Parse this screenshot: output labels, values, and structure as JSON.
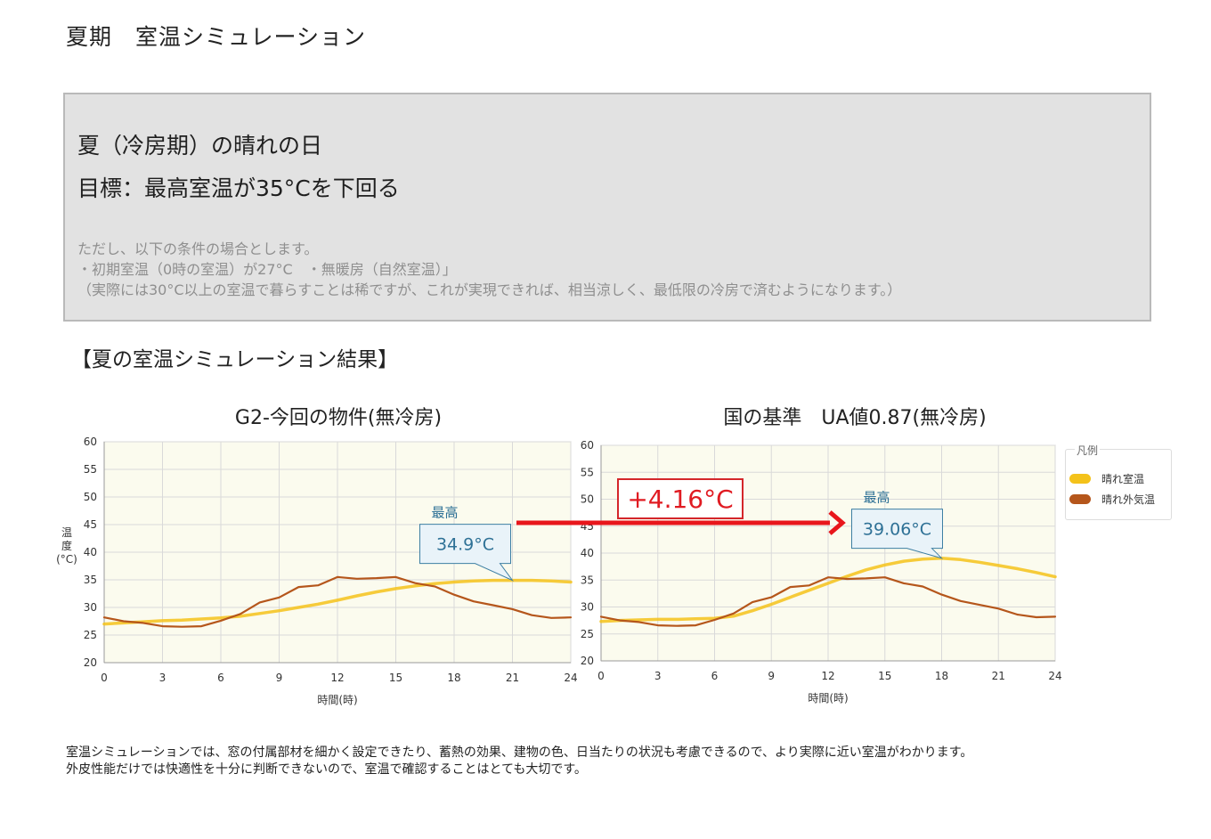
{
  "page": {
    "title": "夏期　室温シミュレーション",
    "section_heading": "【夏の室温シミュレーション結果】",
    "footer_lines": [
      "室温シミュレーションでは、窓の付属部材を細かく設定できたり、蓄熱の効果、建物の色、日当たりの状況も考慮できるので、より実際に近い室温がわかります。",
      "外皮性能だけでは快適性を十分に判断できないので、室温で確認することはとても大切です。"
    ]
  },
  "info_box": {
    "heading1": "夏（冷房期）の晴れの日",
    "heading2": "目標：最高室温が35°Cを下回る",
    "notes": [
      "ただし、以下の条件の場合とします。",
      "・初期室温（0時の室温）が27°C　・無暖房（自然室温）」",
      "（実際には30°C以上の室温で暮らすことは稀ですが、これが実現できれば、相当涼しく、最低限の冷房で済むようになります。）"
    ]
  },
  "comparison": {
    "difference_label": "+4.16°C",
    "arrow_color": "#e8161b"
  },
  "legend": {
    "title": "凡例",
    "items": [
      {
        "label": "晴れ室温",
        "color": "#f4c21a"
      },
      {
        "label": "晴れ外気温",
        "color": "#b5561b"
      }
    ]
  },
  "chart_data": [
    {
      "type": "line",
      "title": "G2-今回の物件(無冷房)",
      "xlabel": "時間(時)",
      "ylabel": "温度(°C)",
      "xlim": [
        0,
        24
      ],
      "ylim": [
        20,
        60
      ],
      "xticks": [
        0,
        3,
        6,
        9,
        12,
        15,
        18,
        21,
        24
      ],
      "yticks": [
        20,
        25,
        30,
        35,
        40,
        45,
        50,
        55,
        60
      ],
      "grid": true,
      "annotation": {
        "label": "最高",
        "value": "34.9°C",
        "x": 21,
        "y": 34.9
      },
      "series": [
        {
          "name": "晴れ室温",
          "color": "#f4c21a",
          "x": [
            0,
            1,
            2,
            3,
            4,
            5,
            6,
            7,
            8,
            9,
            10,
            11,
            12,
            13,
            14,
            15,
            16,
            17,
            18,
            19,
            20,
            21,
            22,
            23,
            24
          ],
          "values": [
            27.0,
            27.2,
            27.4,
            27.6,
            27.7,
            27.9,
            28.1,
            28.4,
            28.9,
            29.4,
            30.0,
            30.6,
            31.3,
            32.1,
            32.8,
            33.4,
            33.9,
            34.3,
            34.6,
            34.8,
            34.9,
            34.9,
            34.9,
            34.8,
            34.6
          ]
        },
        {
          "name": "晴れ外気温",
          "color": "#b5561b",
          "x": [
            0,
            1,
            2,
            3,
            4,
            5,
            6,
            7,
            8,
            9,
            10,
            11,
            12,
            13,
            14,
            15,
            16,
            17,
            18,
            19,
            20,
            21,
            22,
            23,
            24
          ],
          "values": [
            28.2,
            27.5,
            27.2,
            26.6,
            26.5,
            26.6,
            27.6,
            28.8,
            30.9,
            31.8,
            33.7,
            34.0,
            35.5,
            35.2,
            35.3,
            35.5,
            34.4,
            33.8,
            32.3,
            31.1,
            30.4,
            29.7,
            28.6,
            28.1,
            28.2
          ]
        }
      ]
    },
    {
      "type": "line",
      "title": "国の基準　UA値0.87(無冷房)",
      "xlabel": "時間(時)",
      "ylabel": "",
      "xlim": [
        0,
        24
      ],
      "ylim": [
        20,
        60
      ],
      "xticks": [
        0,
        3,
        6,
        9,
        12,
        15,
        18,
        21,
        24
      ],
      "yticks": [
        20,
        25,
        30,
        35,
        40,
        45,
        50,
        55,
        60
      ],
      "grid": true,
      "annotation": {
        "label": "最高",
        "value": "39.06°C",
        "x": 18,
        "y": 39.06
      },
      "series": [
        {
          "name": "晴れ室温",
          "color": "#f4c21a",
          "x": [
            0,
            1,
            2,
            3,
            4,
            5,
            6,
            7,
            8,
            9,
            10,
            11,
            12,
            13,
            14,
            15,
            16,
            17,
            18,
            19,
            20,
            21,
            22,
            23,
            24
          ],
          "values": [
            27.3,
            27.5,
            27.6,
            27.7,
            27.7,
            27.8,
            27.9,
            28.3,
            29.3,
            30.5,
            31.8,
            33.1,
            34.4,
            35.7,
            36.9,
            37.8,
            38.5,
            38.9,
            39.06,
            38.8,
            38.3,
            37.7,
            37.1,
            36.4,
            35.6
          ]
        },
        {
          "name": "晴れ外気温",
          "color": "#b5561b",
          "x": [
            0,
            1,
            2,
            3,
            4,
            5,
            6,
            7,
            8,
            9,
            10,
            11,
            12,
            13,
            14,
            15,
            16,
            17,
            18,
            19,
            20,
            21,
            22,
            23,
            24
          ],
          "values": [
            28.2,
            27.5,
            27.2,
            26.6,
            26.5,
            26.6,
            27.6,
            28.8,
            30.9,
            31.8,
            33.7,
            34.0,
            35.5,
            35.2,
            35.3,
            35.5,
            34.4,
            33.8,
            32.3,
            31.1,
            30.4,
            29.7,
            28.6,
            28.1,
            28.2
          ]
        }
      ]
    }
  ]
}
